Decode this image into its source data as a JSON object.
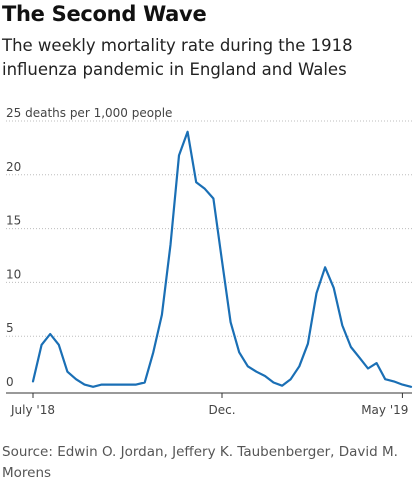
{
  "header": {
    "title": "The Second Wave",
    "subtitle": "The weekly mortality rate during the 1918 influenza pandemic in England and Wales"
  },
  "footer": {
    "source": "Source: Edwin O. Jordan, Jeffery K. Taubenberger, David M. Morens"
  },
  "colors": {
    "line": "#1a6fb5"
  },
  "chart_data": {
    "type": "line",
    "title": "The Second Wave",
    "subtitle": "The weekly mortality rate during the 1918 influenza pandemic in England and Wales",
    "ylabel": "deaths per 1,000 people",
    "ylim": [
      0,
      25
    ],
    "y_ticks": [
      0,
      5,
      10,
      15,
      20,
      25
    ],
    "y_tick_labels": [
      "0",
      "5",
      "10",
      "15",
      "20",
      "25 deaths per 1,000 people"
    ],
    "x_tick_labels": [
      "July '18",
      "Dec.",
      "May '19"
    ],
    "x_tick_weeks": [
      0,
      22,
      43
    ],
    "grid": true,
    "series": [
      {
        "x_week": [
          0,
          1,
          2,
          3,
          4,
          5,
          6,
          7,
          8,
          9,
          10,
          11,
          12,
          13,
          14,
          15,
          16,
          17,
          18,
          19,
          20,
          21,
          22,
          23,
          24,
          25,
          26,
          27,
          28,
          29,
          30,
          31,
          32,
          33,
          34,
          35,
          36,
          37,
          38,
          39,
          40,
          41,
          42,
          43,
          44
        ],
        "values": [
          0.8,
          4.2,
          5.2,
          4.2,
          1.7,
          1.0,
          0.5,
          0.3,
          0.5,
          0.5,
          0.5,
          0.5,
          0.5,
          0.7,
          3.5,
          7.0,
          13.5,
          21.8,
          24.0,
          19.3,
          18.7,
          17.8,
          12.0,
          6.3,
          3.5,
          2.2,
          1.7,
          1.3,
          0.7,
          0.4,
          1.0,
          2.2,
          4.3,
          9.0,
          11.4,
          9.5,
          6.0,
          4.0,
          3.0,
          2.0,
          2.5,
          1.0,
          0.8,
          0.5,
          0.3
        ]
      }
    ]
  }
}
